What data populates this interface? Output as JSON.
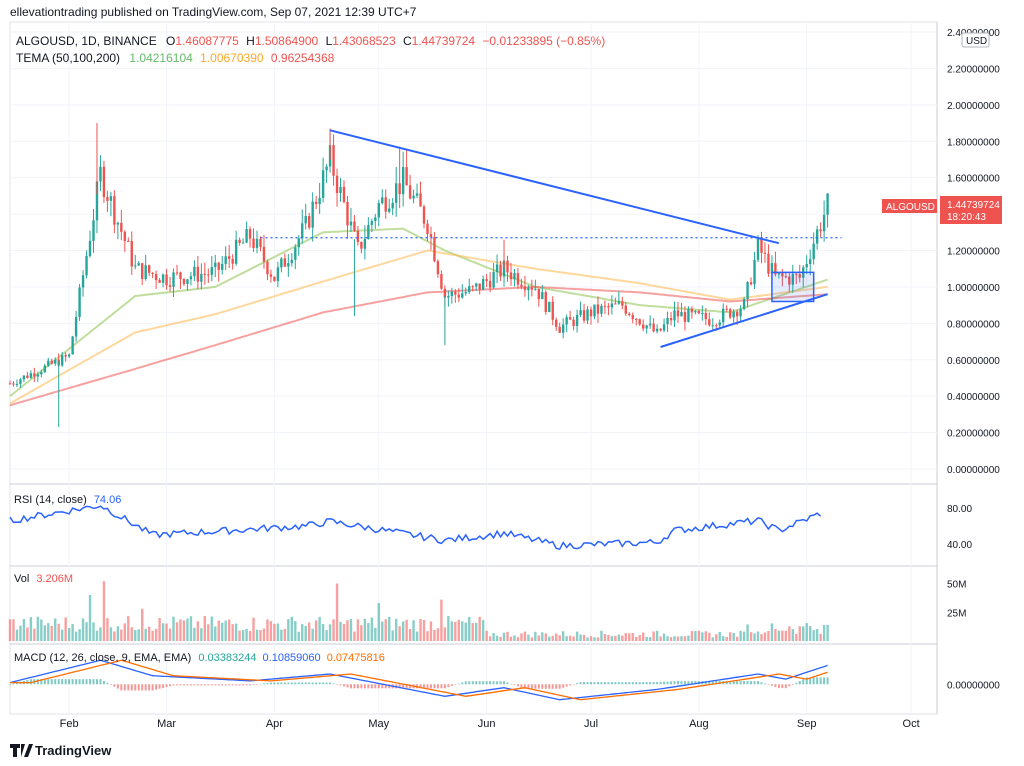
{
  "header": {
    "published": "ellevationtrading published on TradingView.com, Sep 07, 2021 12:39 UTC+7",
    "symbol_line": "ALGOUSD, 1D, BINANCE",
    "open_label": "O",
    "open": "1.46087775",
    "high_label": "H",
    "high": "1.50864900",
    "low_label": "L",
    "low": "1.43068523",
    "close_label": "C",
    "close": "1.44739724",
    "change": "−0.01233895 (−0.85%)",
    "tema_label": "TEMA (50,100,200)",
    "tema_values": [
      "1.04216104",
      "1.00670390",
      "0.96254368"
    ]
  },
  "price_axis": {
    "currency": "USD",
    "ticks": [
      "2.40000000",
      "2.20000000",
      "2.00000000",
      "1.80000000",
      "1.60000000",
      "1.40000000",
      "1.20000000",
      "1.00000000",
      "0.80000000",
      "0.60000000",
      "0.40000000",
      "0.20000000",
      "0.00000000"
    ],
    "tick_values": [
      2.4,
      2.2,
      2.0,
      1.8,
      1.6,
      1.4,
      1.2,
      1.0,
      0.8,
      0.6,
      0.4,
      0.2,
      0.0
    ],
    "badge_symbol": "ALGOUSD",
    "badge_price": "1.44739724",
    "badge_countdown": "18:20:43"
  },
  "rsi": {
    "label": "RSI (14, close)",
    "value": "74.06",
    "ticks": [
      "80.00",
      "40.00"
    ],
    "tick_values": [
      80,
      40
    ]
  },
  "volume": {
    "label": "Vol",
    "value": "3.206M",
    "ticks": [
      "50M",
      "25M"
    ],
    "tick_values": [
      50,
      25
    ]
  },
  "macd": {
    "label": "MACD (12, 26, close, 9, EMA, EMA)",
    "values": [
      "0.03383244",
      "0.10859060",
      "0.07475816"
    ],
    "ticks": [
      "0.00000000"
    ]
  },
  "time_axis": {
    "labels": [
      "Feb",
      "Mar",
      "Apr",
      "May",
      "Jun",
      "Jul",
      "Aug",
      "Sep",
      "Oct"
    ]
  },
  "footer": {
    "brand": "TradingView"
  },
  "colors": {
    "up": "#26a69a",
    "down": "#ef5350",
    "trendline": "#2962ff",
    "tema50": "#8bc34a",
    "tema100": "#ffb74d",
    "tema200": "#ef5350",
    "rsi": "#2962ff",
    "macd": "#2962ff",
    "signal": "#ff6d00"
  },
  "chart_data": {
    "type": "candlestick",
    "x_range": [
      "2021-01-15",
      "2021-10-05"
    ],
    "ylim": [
      0,
      2.4
    ],
    "anchors": [
      {
        "date": "2021-01-15",
        "price": 0.47
      },
      {
        "date": "2021-02-01",
        "price": 0.62
      },
      {
        "date": "2021-02-10",
        "price": 1.62
      },
      {
        "date": "2021-02-20",
        "price": 1.1
      },
      {
        "date": "2021-03-01",
        "price": 1.05
      },
      {
        "date": "2021-03-15",
        "price": 1.08
      },
      {
        "date": "2021-03-25",
        "price": 1.28
      },
      {
        "date": "2021-04-01",
        "price": 1.05
      },
      {
        "date": "2021-04-10",
        "price": 1.33
      },
      {
        "date": "2021-04-17",
        "price": 1.7
      },
      {
        "date": "2021-04-25",
        "price": 1.2
      },
      {
        "date": "2021-05-01",
        "price": 1.45
      },
      {
        "date": "2021-05-08",
        "price": 1.58
      },
      {
        "date": "2021-05-15",
        "price": 1.35
      },
      {
        "date": "2021-05-20",
        "price": 0.95
      },
      {
        "date": "2021-05-28",
        "price": 0.98
      },
      {
        "date": "2021-06-06",
        "price": 1.1
      },
      {
        "date": "2021-06-15",
        "price": 1.0
      },
      {
        "date": "2021-06-22",
        "price": 0.78
      },
      {
        "date": "2021-07-01",
        "price": 0.86
      },
      {
        "date": "2021-07-10",
        "price": 0.9
      },
      {
        "date": "2021-07-20",
        "price": 0.74
      },
      {
        "date": "2021-07-25",
        "price": 0.85
      },
      {
        "date": "2021-08-05",
        "price": 0.82
      },
      {
        "date": "2021-08-14",
        "price": 0.9
      },
      {
        "date": "2021-08-18",
        "price": 1.22
      },
      {
        "date": "2021-08-23",
        "price": 1.05
      },
      {
        "date": "2021-08-30",
        "price": 1.05
      },
      {
        "date": "2021-09-04",
        "price": 1.3
      },
      {
        "date": "2021-09-07",
        "price": 1.45
      }
    ],
    "tema": [
      {
        "name": "TEMA 50",
        "color": "#8bc34a",
        "points": [
          [
            "2021-01-15",
            0.4
          ],
          [
            "2021-02-20",
            0.95
          ],
          [
            "2021-03-15",
            1.0
          ],
          [
            "2021-04-15",
            1.3
          ],
          [
            "2021-05-08",
            1.32
          ],
          [
            "2021-05-20",
            1.2
          ],
          [
            "2021-06-15",
            1.0
          ],
          [
            "2021-07-15",
            0.9
          ],
          [
            "2021-08-10",
            0.86
          ],
          [
            "2021-09-07",
            1.04
          ]
        ]
      },
      {
        "name": "TEMA 100",
        "color": "#ffb74d",
        "points": [
          [
            "2021-01-15",
            0.36
          ],
          [
            "2021-02-20",
            0.75
          ],
          [
            "2021-03-15",
            0.85
          ],
          [
            "2021-04-15",
            1.03
          ],
          [
            "2021-05-15",
            1.2
          ],
          [
            "2021-06-15",
            1.1
          ],
          [
            "2021-07-15",
            1.02
          ],
          [
            "2021-08-10",
            0.93
          ],
          [
            "2021-09-07",
            1.0
          ]
        ]
      },
      {
        "name": "TEMA 200",
        "color": "#ef5350",
        "points": [
          [
            "2021-01-15",
            0.35
          ],
          [
            "2021-02-20",
            0.55
          ],
          [
            "2021-03-15",
            0.68
          ],
          [
            "2021-04-15",
            0.86
          ],
          [
            "2021-05-15",
            0.97
          ],
          [
            "2021-06-15",
            1.0
          ],
          [
            "2021-07-15",
            0.97
          ],
          [
            "2021-08-10",
            0.92
          ],
          [
            "2021-09-07",
            0.96
          ]
        ]
      }
    ],
    "drawings": {
      "descending_trendline": [
        [
          "2021-04-17",
          1.86
        ],
        [
          "2021-08-24",
          1.24
        ]
      ],
      "rising_trendline": [
        [
          "2021-07-21",
          0.67
        ],
        [
          "2021-09-07",
          0.96
        ]
      ],
      "horizontal_level": {
        "start": "2021-03-28",
        "end": "2021-09-11",
        "price": 1.27
      },
      "box": {
        "start": "2021-08-22",
        "end": "2021-09-03",
        "top": 1.08,
        "bottom": 0.92
      }
    },
    "volume_spikes": [
      {
        "date": "2021-02-11",
        "value": 52
      },
      {
        "date": "2021-02-07",
        "value": 40
      },
      {
        "date": "2021-04-19",
        "value": 50
      },
      {
        "date": "2021-05-19",
        "value": 36
      },
      {
        "date": "2021-02-22",
        "value": 28
      },
      {
        "date": "2021-05-01",
        "value": 33
      }
    ],
    "rsi_anchors": [
      [
        "2021-01-15",
        66
      ],
      [
        "2021-02-10",
        83
      ],
      [
        "2021-02-25",
        50
      ],
      [
        "2021-04-10",
        60
      ],
      [
        "2021-04-17",
        65
      ],
      [
        "2021-05-20",
        44
      ],
      [
        "2021-06-06",
        52
      ],
      [
        "2021-06-22",
        38
      ],
      [
        "2021-07-20",
        42
      ],
      [
        "2021-07-25",
        55
      ],
      [
        "2021-08-18",
        66
      ],
      [
        "2021-08-24",
        55
      ],
      [
        "2021-09-05",
        74
      ]
    ],
    "macd_anchors": [
      [
        "2021-01-15",
        0.01
      ],
      [
        "2021-02-10",
        0.14
      ],
      [
        "2021-02-25",
        0.05
      ],
      [
        "2021-03-25",
        0.02
      ],
      [
        "2021-04-17",
        0.06
      ],
      [
        "2021-05-20",
        -0.07
      ],
      [
        "2021-06-06",
        -0.02
      ],
      [
        "2021-06-22",
        -0.09
      ],
      [
        "2021-07-20",
        -0.03
      ],
      [
        "2021-08-18",
        0.06
      ],
      [
        "2021-08-26",
        0.03
      ],
      [
        "2021-09-07",
        0.11
      ]
    ]
  }
}
